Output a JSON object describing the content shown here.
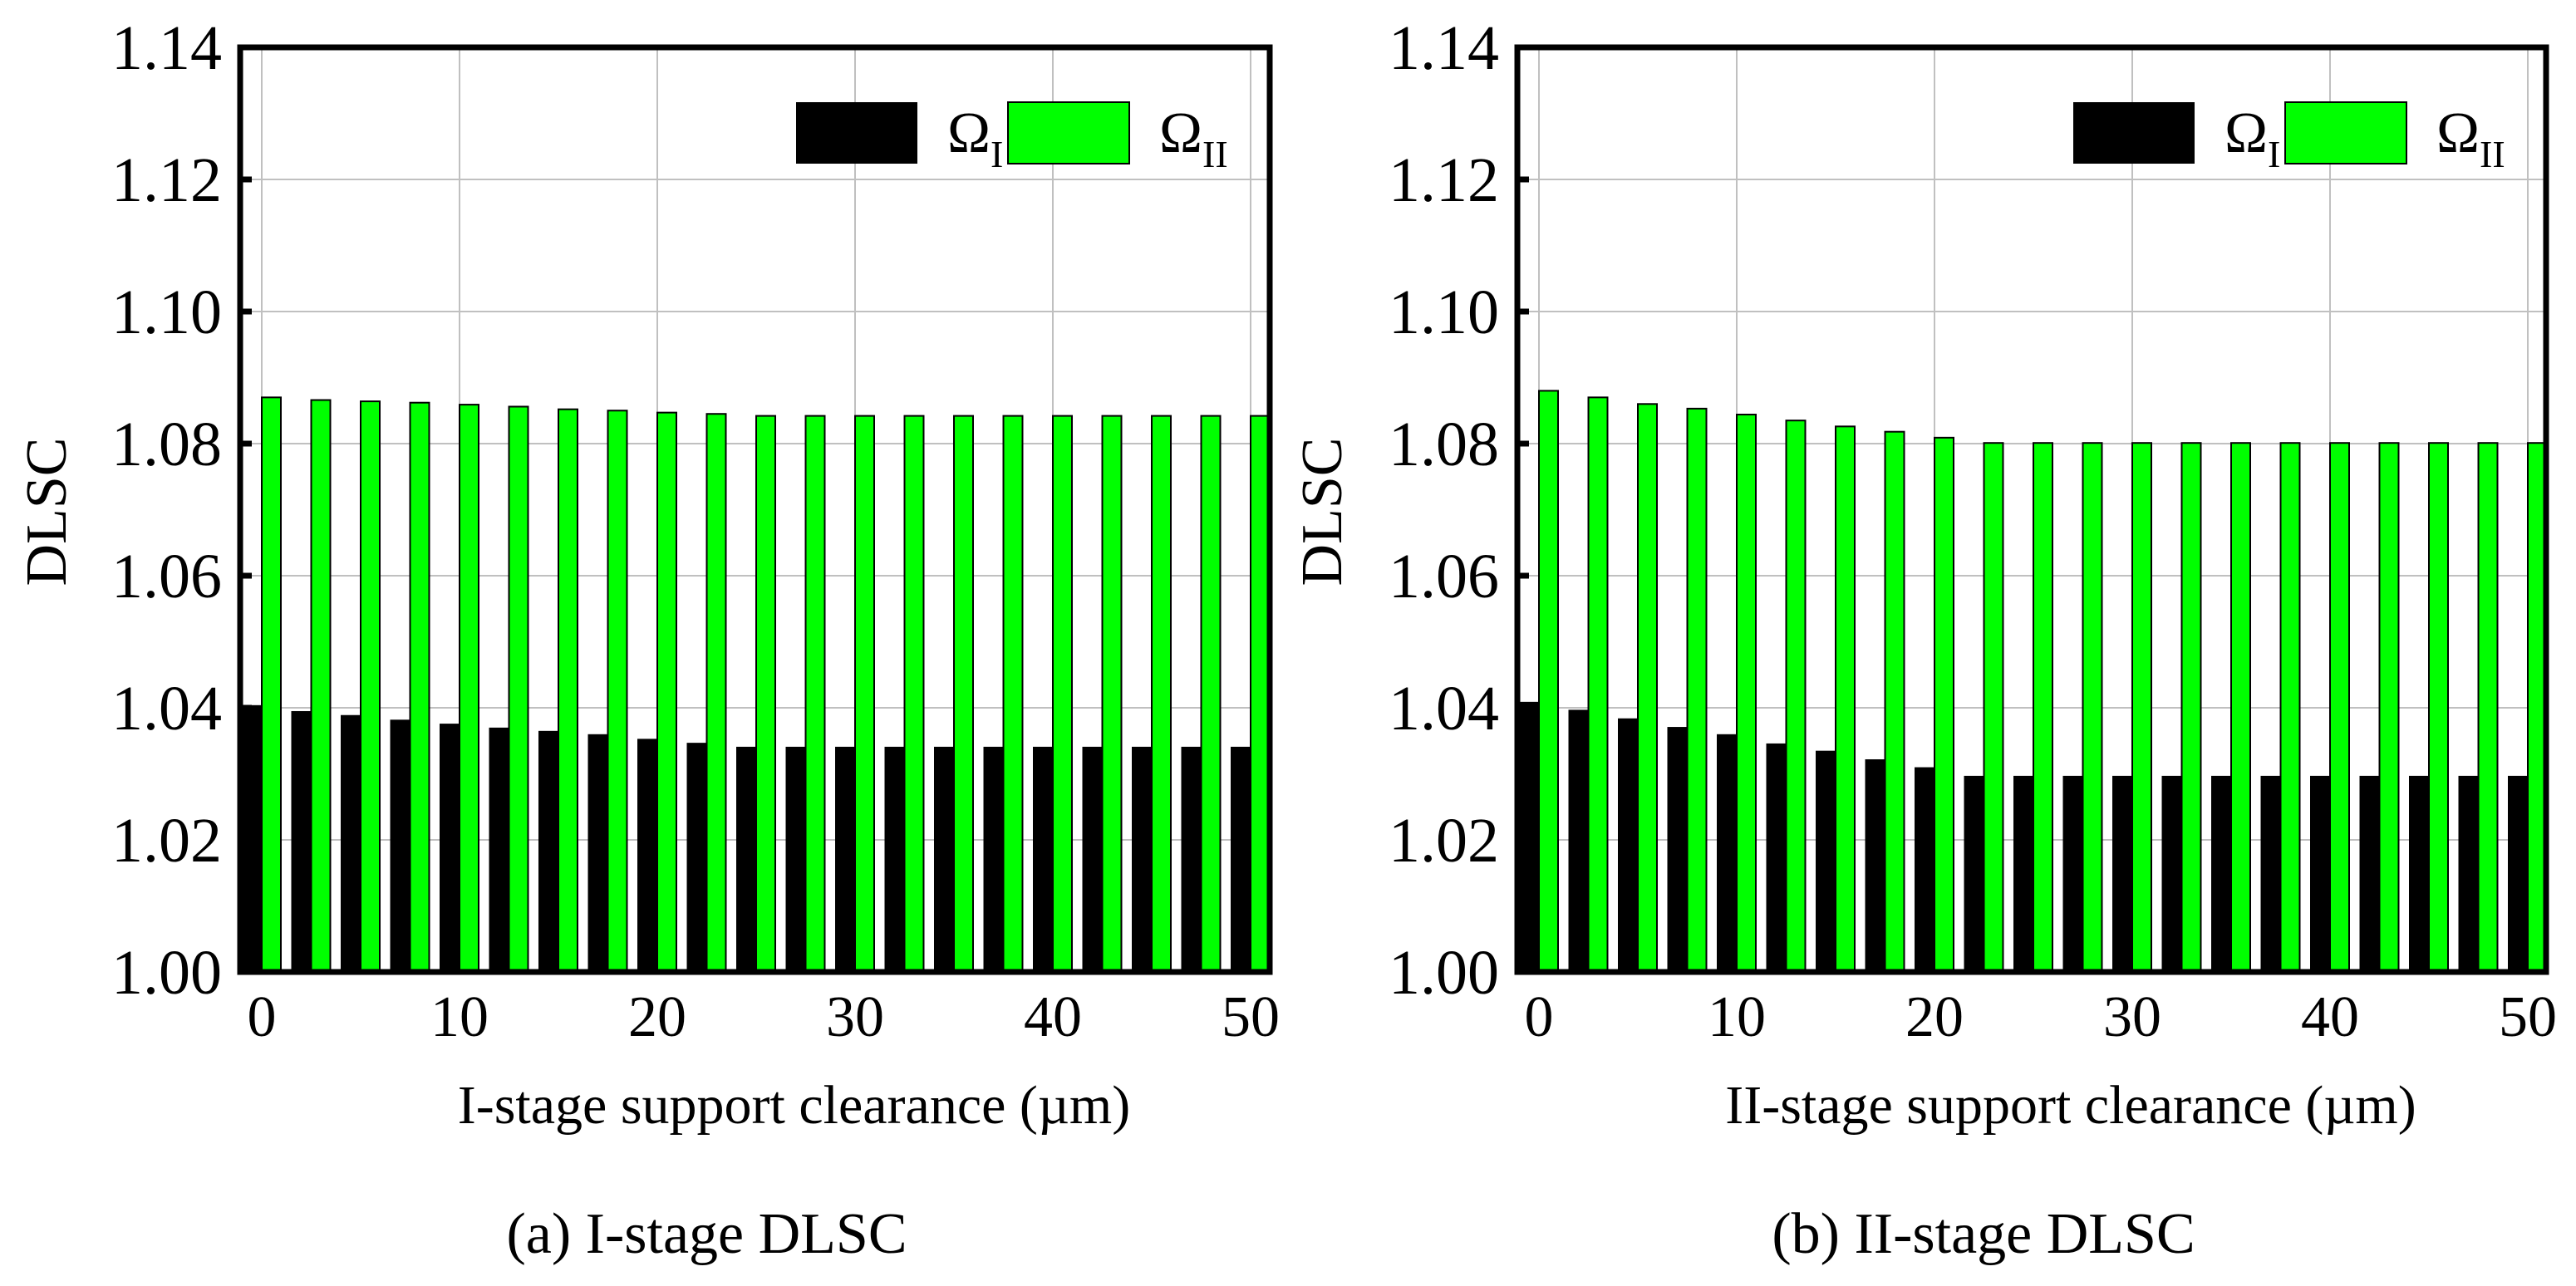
{
  "colors": {
    "series_1": "#000000",
    "series_2": "#00ff00",
    "grid": "#c0c0c0",
    "frame": "#000000"
  },
  "chart_data": [
    {
      "type": "bar",
      "caption": "(a) I-stage DLSC",
      "xlabel": "I-stage support clearance (µm)",
      "ylabel": "DLSC",
      "ylim": [
        1.0,
        1.14
      ],
      "xlim": [
        0,
        50
      ],
      "yticks": [
        "1.00",
        "1.02",
        "1.04",
        "1.06",
        "1.08",
        "1.10",
        "1.12",
        "1.14"
      ],
      "xticks": [
        "0",
        "10",
        "20",
        "30",
        "40",
        "50"
      ],
      "grid": true,
      "legend_position": "top-right",
      "x": [
        0,
        2.5,
        5,
        7.5,
        10,
        12.5,
        15,
        17.5,
        20,
        22.5,
        25,
        27.5,
        30,
        32.5,
        35,
        37.5,
        40,
        42.5,
        45,
        47.5,
        50
      ],
      "series": [
        {
          "name": "Ω",
          "subscript": "I",
          "color": "#000000",
          "values": [
            1.0404,
            1.0395,
            1.0389,
            1.0382,
            1.0376,
            1.037,
            1.0365,
            1.036,
            1.0353,
            1.0347,
            1.0341,
            1.0341,
            1.0341,
            1.0341,
            1.0341,
            1.0341,
            1.0341,
            1.0341,
            1.0341,
            1.0341,
            1.0341
          ]
        },
        {
          "name": "Ω",
          "subscript": "II",
          "color": "#00ff00",
          "values": [
            1.087,
            1.0866,
            1.0864,
            1.0862,
            1.0859,
            1.0856,
            1.0852,
            1.085,
            1.0847,
            1.0845,
            1.0842,
            1.0842,
            1.0842,
            1.0842,
            1.0842,
            1.0842,
            1.0842,
            1.0842,
            1.0842,
            1.0842,
            1.0842
          ]
        }
      ]
    },
    {
      "type": "bar",
      "caption": "(b) II-stage DLSC",
      "xlabel": "II-stage support clearance (µm)",
      "ylabel": "DLSC",
      "ylim": [
        1.0,
        1.14
      ],
      "xlim": [
        0,
        50
      ],
      "yticks": [
        "1.00",
        "1.02",
        "1.04",
        "1.06",
        "1.08",
        "1.10",
        "1.12",
        "1.14"
      ],
      "xticks": [
        "0",
        "10",
        "20",
        "30",
        "40",
        "50"
      ],
      "grid": true,
      "legend_position": "top-right",
      "x": [
        0,
        2.5,
        5,
        7.5,
        10,
        12.5,
        15,
        17.5,
        20,
        22.5,
        25,
        27.5,
        30,
        32.5,
        35,
        37.5,
        40,
        42.5,
        45,
        47.5,
        50
      ],
      "series": [
        {
          "name": "Ω",
          "subscript": "I",
          "color": "#000000",
          "values": [
            1.0409,
            1.0397,
            1.0384,
            1.0371,
            1.036,
            1.0346,
            1.0335,
            1.0322,
            1.031,
            1.0297,
            1.0297,
            1.0297,
            1.0297,
            1.0297,
            1.0297,
            1.0297,
            1.0297,
            1.0297,
            1.0297,
            1.0297,
            1.0297
          ]
        },
        {
          "name": "Ω",
          "subscript": "II",
          "color": "#00ff00",
          "values": [
            1.088,
            1.087,
            1.086,
            1.0853,
            1.0844,
            1.0835,
            1.0826,
            1.0818,
            1.0809,
            1.0801,
            1.0801,
            1.0801,
            1.0801,
            1.0801,
            1.0801,
            1.0801,
            1.0801,
            1.0801,
            1.0801,
            1.0801,
            1.0801
          ]
        }
      ]
    }
  ]
}
